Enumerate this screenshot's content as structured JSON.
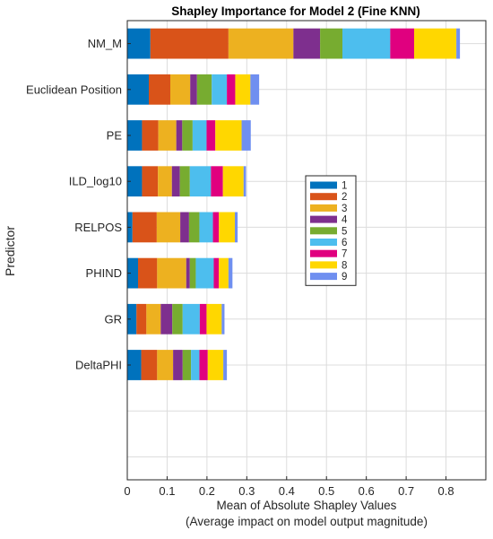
{
  "chart_data": {
    "type": "bar",
    "orientation": "horizontal",
    "stacked": true,
    "title": "Shapley Importance for Model 2 (Fine KNN)",
    "xlabel_lines": [
      "Mean of Absolute Shapley Values",
      "(Average impact on model output magnitude)"
    ],
    "ylabel": "Predictor",
    "xlim": [
      0,
      0.9
    ],
    "xticks": [
      0,
      0.1,
      0.2,
      0.3,
      0.4,
      0.5,
      0.6,
      0.7,
      0.8
    ],
    "xtick_labels": [
      "0",
      "0.1",
      "0.2",
      "0.3",
      "0.4",
      "0.5",
      "0.6",
      "0.7",
      "0.8"
    ],
    "grid": true,
    "legend_position": "inside-right",
    "categories": [
      "NM_M",
      "Euclidean Position",
      "PE",
      "ILD_log10",
      "RELPOS",
      "PHIND",
      "GR",
      "DeltaPHI"
    ],
    "empty_slots_below": 2,
    "series": [
      {
        "name": "1",
        "color": "#0072BD",
        "values": [
          0.058,
          0.054,
          0.037,
          0.037,
          0.013,
          0.027,
          0.023,
          0.035
        ]
      },
      {
        "name": "2",
        "color": "#D95319",
        "values": [
          0.196,
          0.054,
          0.041,
          0.04,
          0.061,
          0.048,
          0.025,
          0.04
        ]
      },
      {
        "name": "3",
        "color": "#EDB120",
        "values": [
          0.163,
          0.05,
          0.045,
          0.035,
          0.059,
          0.073,
          0.036,
          0.04
        ]
      },
      {
        "name": "4",
        "color": "#7E2F8E",
        "values": [
          0.067,
          0.017,
          0.015,
          0.02,
          0.022,
          0.009,
          0.029,
          0.024
        ]
      },
      {
        "name": "5",
        "color": "#77AC30",
        "values": [
          0.056,
          0.037,
          0.026,
          0.025,
          0.026,
          0.015,
          0.026,
          0.021
        ]
      },
      {
        "name": "6",
        "color": "#4DBEEE",
        "values": [
          0.12,
          0.038,
          0.035,
          0.053,
          0.034,
          0.045,
          0.043,
          0.021
        ]
      },
      {
        "name": "7",
        "color": "#E0007F",
        "values": [
          0.06,
          0.021,
          0.022,
          0.03,
          0.015,
          0.013,
          0.017,
          0.021
        ]
      },
      {
        "name": "8",
        "color": "#FFD700",
        "values": [
          0.106,
          0.038,
          0.066,
          0.052,
          0.04,
          0.024,
          0.038,
          0.039
        ]
      },
      {
        "name": "9",
        "color": "#6F8FF0",
        "values": [
          0.009,
          0.022,
          0.023,
          0.006,
          0.007,
          0.01,
          0.007,
          0.009
        ]
      }
    ]
  }
}
